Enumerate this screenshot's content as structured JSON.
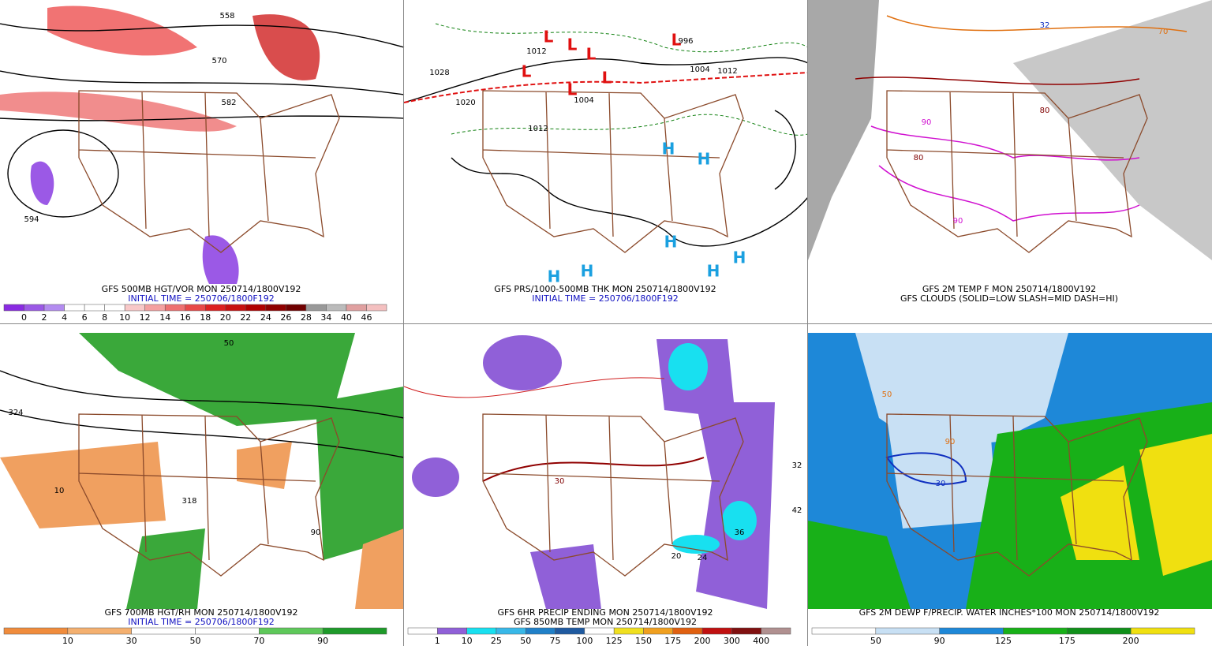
{
  "panels": [
    {
      "captions": [
        {
          "text": "GFS 500MB HGT/VOR MON 250714/1800V192",
          "color": "#000000"
        },
        {
          "text": "INITIAL TIME = 250706/1800F192",
          "color": "#1010c0"
        }
      ],
      "colorbar": {
        "labels": [
          "0",
          "2",
          "4",
          "6",
          "8",
          "10",
          "12",
          "14",
          "16",
          "18",
          "20",
          "22",
          "24",
          "26",
          "28",
          "34",
          "40",
          "46"
        ],
        "colors": [
          "#8a2be2",
          "#9b59e6",
          "#b38cf0",
          "#ffffff",
          "#ffffff",
          "#ffffff",
          "#f8c8c8",
          "#f4a0a0",
          "#ee7070",
          "#e84848",
          "#dd2020",
          "#c81010",
          "#b00000",
          "#900000",
          "#700000",
          "#999999",
          "#bbbbbb",
          "#e0a0a0",
          "#f4c0c0"
        ]
      },
      "labels": [
        {
          "text": "558",
          "color": "#000000"
        },
        {
          "text": "570",
          "color": "#000000"
        },
        {
          "text": "582",
          "color": "#000000"
        },
        {
          "text": "594",
          "color": "#000000"
        }
      ]
    },
    {
      "captions": [
        {
          "text": "GFS PRS/1000-500MB THK MON 250714/1800V192",
          "color": "#000000"
        },
        {
          "text": "INITIAL TIME = 250706/1800F192",
          "color": "#1010c0"
        }
      ],
      "labels": [
        {
          "text": "L",
          "color": "#e01010"
        },
        {
          "text": "L",
          "color": "#e01010"
        },
        {
          "text": "L",
          "color": "#e01010"
        },
        {
          "text": "L",
          "color": "#e01010"
        },
        {
          "text": "L",
          "color": "#e01010"
        },
        {
          "text": "L",
          "color": "#e01010"
        },
        {
          "text": "L",
          "color": "#e01010"
        },
        {
          "text": "H",
          "color": "#1aa0e0"
        },
        {
          "text": "H",
          "color": "#1aa0e0"
        },
        {
          "text": "H",
          "color": "#1aa0e0"
        },
        {
          "text": "H",
          "color": "#1aa0e0"
        },
        {
          "text": "H",
          "color": "#1aa0e0"
        },
        {
          "text": "H",
          "color": "#1aa0e0"
        },
        {
          "text": "H",
          "color": "#1aa0e0"
        },
        {
          "text": "1028",
          "color": "#000000"
        },
        {
          "text": "1020",
          "color": "#000000"
        },
        {
          "text": "1012",
          "color": "#000000"
        },
        {
          "text": "1004",
          "color": "#000000"
        },
        {
          "text": "996",
          "color": "#000000"
        },
        {
          "text": "1004",
          "color": "#000000"
        },
        {
          "text": "1012",
          "color": "#000000"
        },
        {
          "text": "1012",
          "color": "#000000"
        }
      ]
    },
    {
      "captions": [
        {
          "text": "GFS 2M TEMP F MON 250714/1800V192",
          "color": "#000000"
        },
        {
          "text": "GFS CLOUDS (SOLID=LOW SLASH=MID DASH=HI)",
          "color": "#000000"
        }
      ],
      "labels": [
        {
          "text": "32",
          "color": "#1030c0"
        },
        {
          "text": "90",
          "color": "#d010d0"
        },
        {
          "text": "90",
          "color": "#d010d0"
        },
        {
          "text": "80",
          "color": "#800000"
        },
        {
          "text": "80",
          "color": "#800000"
        },
        {
          "text": "70",
          "color": "#e07010"
        }
      ]
    },
    {
      "captions": [
        {
          "text": "GFS 700MB HGT/RH MON 250714/1800V192",
          "color": "#000000"
        },
        {
          "text": "INITIAL TIME = 250706/1800F192",
          "color": "#1010c0"
        }
      ],
      "colorbar": {
        "labels": [
          "10",
          "30",
          "50",
          "70",
          "90"
        ],
        "colors": [
          "#f08c3c",
          "#f4b070",
          "#ffffff",
          "#ffffff",
          "#5ec85a",
          "#1e9a2a"
        ]
      },
      "labels": [
        {
          "text": "324",
          "color": "#000000"
        },
        {
          "text": "318",
          "color": "#000000"
        },
        {
          "text": "50",
          "color": "#000000"
        },
        {
          "text": "90",
          "color": "#000000"
        },
        {
          "text": "10",
          "color": "#000000"
        }
      ]
    },
    {
      "captions": [
        {
          "text": "GFS 6HR PRECIP ENDING MON 250714/1800V192",
          "color": "#000000"
        },
        {
          "text": "GFS 850MB TEMP MON 250714/1800V192",
          "color": "#000000"
        }
      ],
      "colorbar": {
        "labels": [
          "1",
          "10",
          "25",
          "50",
          "75",
          "100",
          "125",
          "150",
          "175",
          "200",
          "300",
          "400"
        ],
        "colors": [
          "#ffffff",
          "#9060d8",
          "#18e0f0",
          "#38b8e8",
          "#2080c8",
          "#1f5aa0",
          "#ffffff",
          "#f0e020",
          "#f0a020",
          "#e06010",
          "#c01010",
          "#801010",
          "#b09090"
        ]
      },
      "labels": [
        {
          "text": "36",
          "color": "#000000"
        },
        {
          "text": "32",
          "color": "#000000"
        },
        {
          "text": "42",
          "color": "#000000"
        },
        {
          "text": "20",
          "color": "#000000"
        },
        {
          "text": "24",
          "color": "#000000"
        },
        {
          "text": "30",
          "color": "#800000"
        }
      ]
    },
    {
      "captions": [
        {
          "text": "GFS 2M DEWP F/PRECIP. WATER INCHES*100 MON 250714/1800V192",
          "color": "#000000"
        }
      ],
      "colorbar": {
        "labels": [
          "50",
          "90",
          "125",
          "175",
          "200"
        ],
        "colors": [
          "#ffffff",
          "#c8e0f4",
          "#1e88d8",
          "#18b018",
          "#10901a",
          "#f0e010"
        ]
      },
      "labels": [
        {
          "text": "30",
          "color": "#1030c0"
        },
        {
          "text": "50",
          "color": "#e07010"
        },
        {
          "text": "90",
          "color": "#e07010"
        }
      ]
    }
  ]
}
